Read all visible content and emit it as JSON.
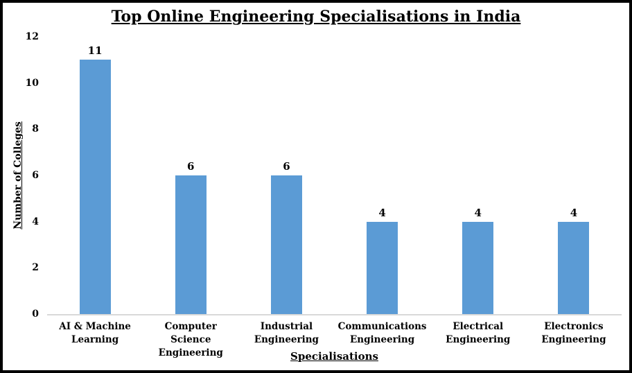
{
  "chart_data": {
    "type": "bar",
    "title": "Top Online Engineering Specialisations in India",
    "xlabel": "Specialisations",
    "ylabel": "Number of Colleges",
    "categories": [
      "AI & Machine Learning",
      "Computer Science Engineering",
      "Industrial Engineering",
      "Communications Engineering",
      "Electrical Engineering",
      "Electronics Engineering"
    ],
    "values": [
      11,
      6,
      6,
      4,
      4,
      4
    ],
    "data_labels": [
      "11",
      "6",
      "6",
      "4",
      "4",
      "4"
    ],
    "yticks": [
      0,
      2,
      4,
      6,
      8,
      10,
      12
    ],
    "ylim": [
      0,
      12
    ],
    "grid": false,
    "legend": false,
    "bar_color": "#5b9bd5",
    "axis_line_color": "#d9d9d9",
    "text_color": "#000000",
    "frame_border_color": "#000000"
  }
}
